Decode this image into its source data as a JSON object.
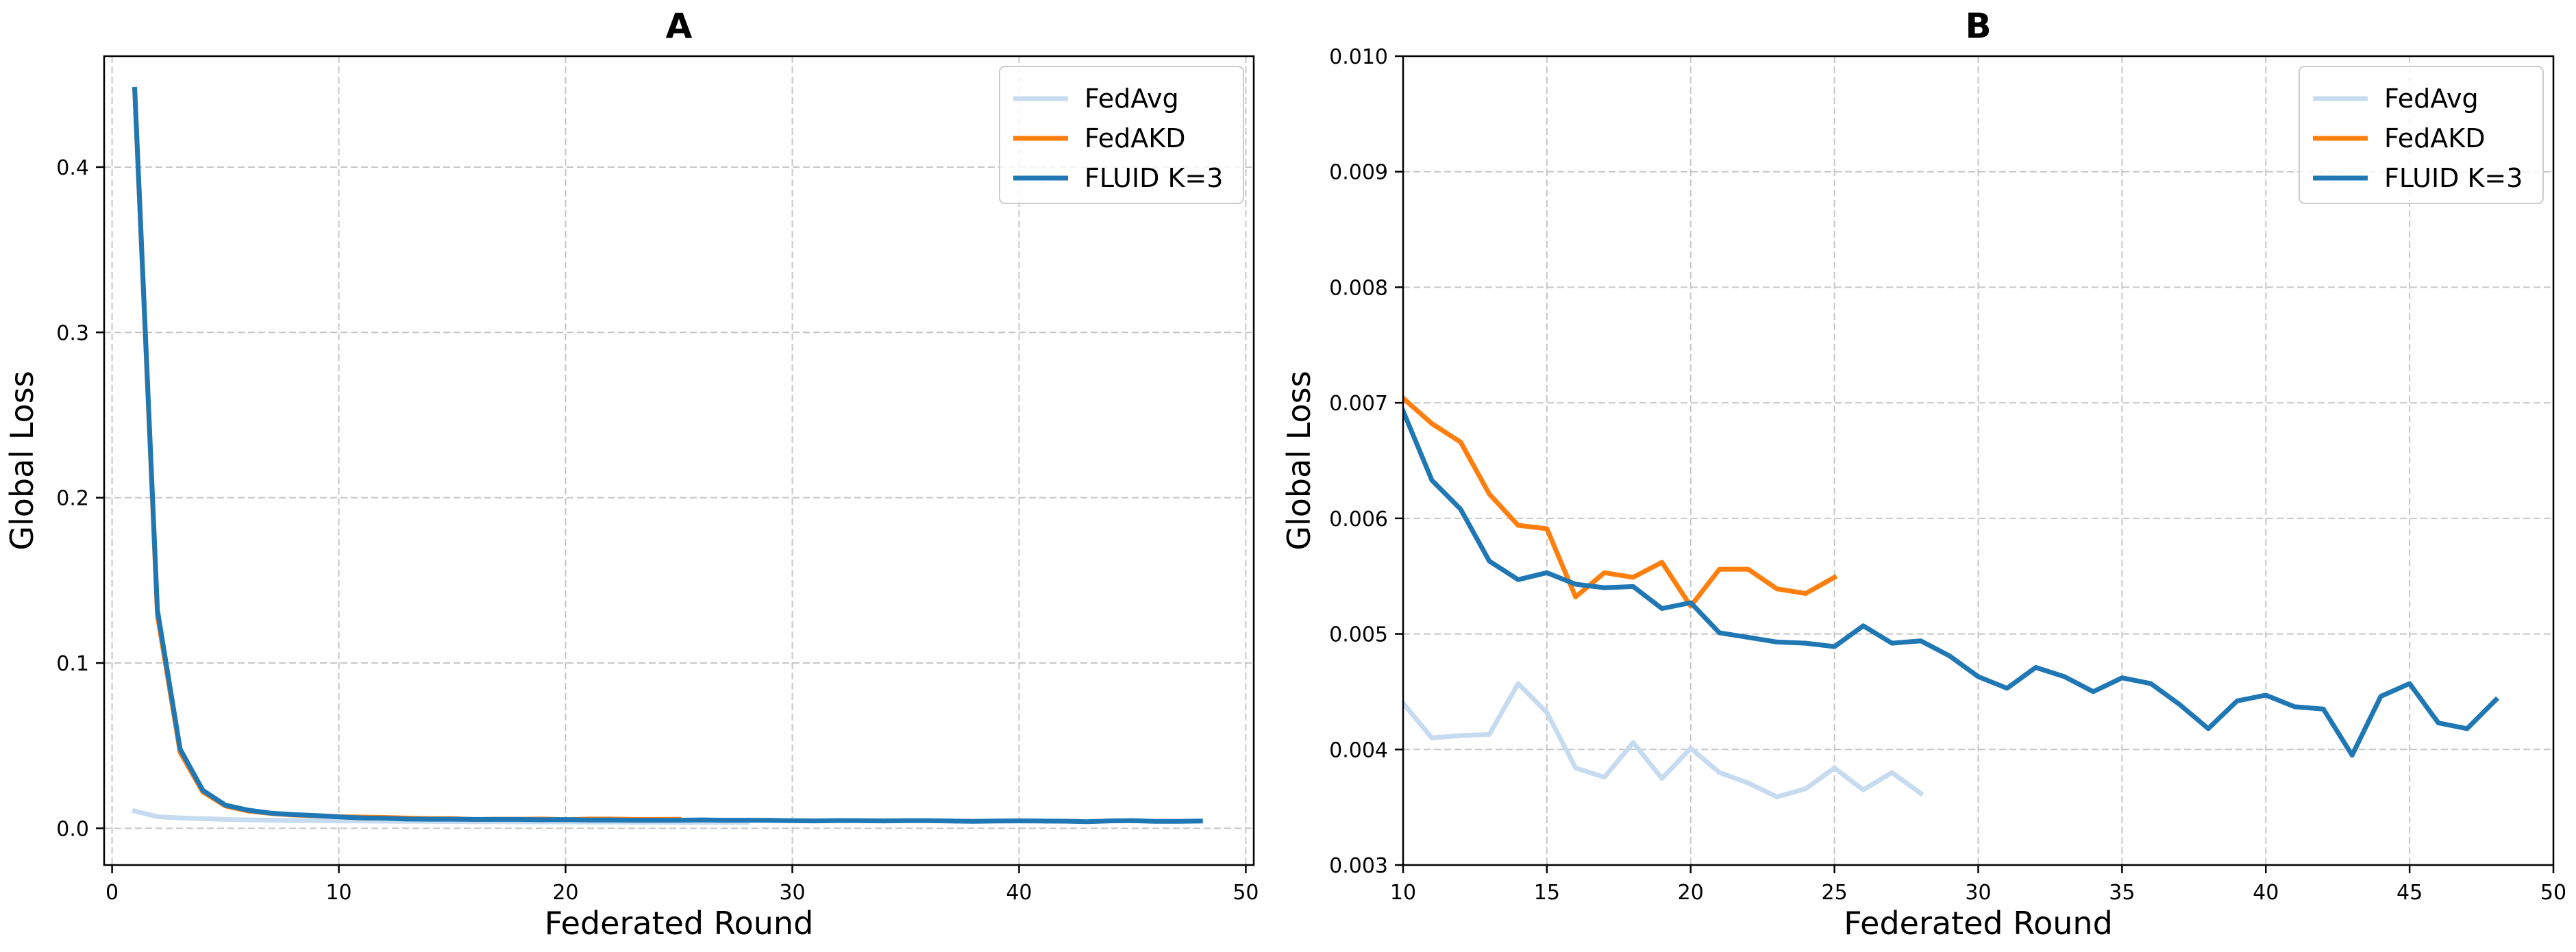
{
  "chart_data": [
    {
      "type": "line",
      "panel": "A",
      "title": "A",
      "xlabel": "Federated Round",
      "ylabel": "Global Loss",
      "xlim": [
        -0.35,
        50.35
      ],
      "ylim": [
        -0.0222,
        0.4671
      ],
      "xticks": [
        0,
        10,
        20,
        30,
        40,
        50
      ],
      "yticks": [
        0.0,
        0.1,
        0.2,
        0.3,
        0.4
      ],
      "xtick_labels": [
        "0",
        "10",
        "20",
        "30",
        "40",
        "50"
      ],
      "ytick_labels": [
        "0.0",
        "0.1",
        "0.2",
        "0.3",
        "0.4"
      ],
      "grid": true,
      "legend_position": "top-right",
      "series": [
        {
          "name": "FedAvg",
          "color": "#c6dbef",
          "x": [
            1,
            2,
            3,
            4,
            5,
            6,
            7,
            8,
            9,
            10,
            11,
            12,
            13,
            14,
            15,
            16,
            17,
            18,
            19,
            20,
            21,
            22,
            23,
            24,
            25,
            26,
            27,
            28
          ],
          "values": [
            0.0105,
            0.007,
            0.0063,
            0.0058,
            0.0054,
            0.0051,
            0.0049,
            0.0047,
            0.0046,
            0.0045,
            0.0044,
            0.0043,
            0.0042,
            0.0042,
            0.0041,
            0.004,
            0.004,
            0.0039,
            0.0039,
            0.0039,
            0.0038,
            0.0038,
            0.0037,
            0.0037,
            0.0036,
            0.0036,
            0.0036,
            0.0036
          ]
        },
        {
          "name": "FedAKD",
          "color": "#ff7f0e",
          "x": [
            1,
            2,
            3,
            4,
            5,
            6,
            7,
            8,
            9,
            10,
            11,
            12,
            13,
            14,
            15,
            16,
            17,
            18,
            19,
            20,
            21,
            22,
            23,
            24,
            25
          ],
          "values": [
            0.446,
            0.129,
            0.046,
            0.022,
            0.0135,
            0.0105,
            0.009,
            0.0081,
            0.0076,
            0.007,
            0.0068,
            0.0066,
            0.0062,
            0.0059,
            0.0059,
            0.0053,
            0.0055,
            0.0055,
            0.0056,
            0.0052,
            0.0056,
            0.0056,
            0.0054,
            0.0054,
            0.0055
          ]
        },
        {
          "name": "FLUID K=3",
          "color": "#1f77b4",
          "x": [
            1,
            2,
            3,
            4,
            5,
            6,
            7,
            8,
            9,
            10,
            11,
            12,
            13,
            14,
            15,
            16,
            17,
            18,
            19,
            20,
            21,
            22,
            23,
            24,
            25,
            26,
            27,
            28,
            29,
            30,
            31,
            32,
            33,
            34,
            35,
            36,
            37,
            38,
            39,
            40,
            41,
            42,
            43,
            44,
            45,
            46,
            47,
            48
          ],
          "values": [
            0.447,
            0.132,
            0.048,
            0.023,
            0.014,
            0.011,
            0.0092,
            0.0083,
            0.0077,
            0.0069,
            0.0063,
            0.0061,
            0.0056,
            0.0055,
            0.0055,
            0.0054,
            0.0054,
            0.0054,
            0.0052,
            0.0053,
            0.005,
            0.005,
            0.0049,
            0.0049,
            0.0049,
            0.0051,
            0.0049,
            0.0049,
            0.0048,
            0.0046,
            0.0045,
            0.0047,
            0.0046,
            0.0045,
            0.0046,
            0.0046,
            0.0044,
            0.0042,
            0.0044,
            0.0045,
            0.0044,
            0.0043,
            0.004,
            0.0045,
            0.0046,
            0.0042,
            0.0042,
            0.0044
          ]
        }
      ]
    },
    {
      "type": "line",
      "panel": "B",
      "title": "B",
      "xlabel": "Federated Round",
      "ylabel": "Global Loss",
      "xlim": [
        10,
        50
      ],
      "ylim": [
        0.003,
        0.01
      ],
      "xticks": [
        10,
        15,
        20,
        25,
        30,
        35,
        40,
        45,
        50
      ],
      "yticks": [
        0.003,
        0.004,
        0.005,
        0.006,
        0.007,
        0.008,
        0.009,
        0.01
      ],
      "xtick_labels": [
        "10",
        "15",
        "20",
        "25",
        "30",
        "35",
        "40",
        "45",
        "50"
      ],
      "ytick_labels": [
        "0.003",
        "0.004",
        "0.005",
        "0.006",
        "0.007",
        "0.008",
        "0.009",
        "0.010"
      ],
      "grid": true,
      "legend_position": "top-right",
      "series": [
        {
          "name": "FedAvg",
          "color": "#c6dbef",
          "x": [
            10,
            11,
            12,
            13,
            14,
            15,
            16,
            17,
            18,
            19,
            20,
            21,
            22,
            23,
            24,
            25,
            26,
            27,
            28
          ],
          "values": [
            0.0044,
            0.0041,
            0.00412,
            0.00413,
            0.00457,
            0.00432,
            0.00384,
            0.00376,
            0.00406,
            0.00375,
            0.00401,
            0.0038,
            0.00371,
            0.00359,
            0.00366,
            0.00384,
            0.00365,
            0.0038,
            0.00362
          ]
        },
        {
          "name": "FedAKD",
          "color": "#ff7f0e",
          "x": [
            10,
            11,
            12,
            13,
            14,
            15,
            16,
            17,
            18,
            19,
            20,
            21,
            22,
            23,
            24,
            25
          ],
          "values": [
            0.00704,
            0.00682,
            0.00666,
            0.00621,
            0.00594,
            0.00591,
            0.00532,
            0.00553,
            0.00549,
            0.00562,
            0.00524,
            0.00556,
            0.00556,
            0.00539,
            0.00535,
            0.00549
          ]
        },
        {
          "name": "FLUID K=3",
          "color": "#1f77b4",
          "x": [
            10,
            11,
            12,
            13,
            14,
            15,
            16,
            17,
            18,
            19,
            20,
            21,
            22,
            23,
            24,
            25,
            26,
            27,
            28,
            29,
            30,
            31,
            32,
            33,
            34,
            35,
            36,
            37,
            38,
            39,
            40,
            41,
            42,
            43,
            44,
            45,
            46,
            47,
            48
          ],
          "values": [
            0.00693,
            0.00633,
            0.00608,
            0.00563,
            0.00547,
            0.00553,
            0.00543,
            0.0054,
            0.00541,
            0.00522,
            0.00527,
            0.00501,
            0.00497,
            0.00493,
            0.00492,
            0.00489,
            0.00507,
            0.00492,
            0.00494,
            0.00481,
            0.00463,
            0.00453,
            0.00471,
            0.00463,
            0.0045,
            0.00462,
            0.00457,
            0.00439,
            0.00418,
            0.00442,
            0.00447,
            0.00437,
            0.00435,
            0.00395,
            0.00446,
            0.00457,
            0.00423,
            0.00418,
            0.00443
          ]
        }
      ]
    }
  ]
}
